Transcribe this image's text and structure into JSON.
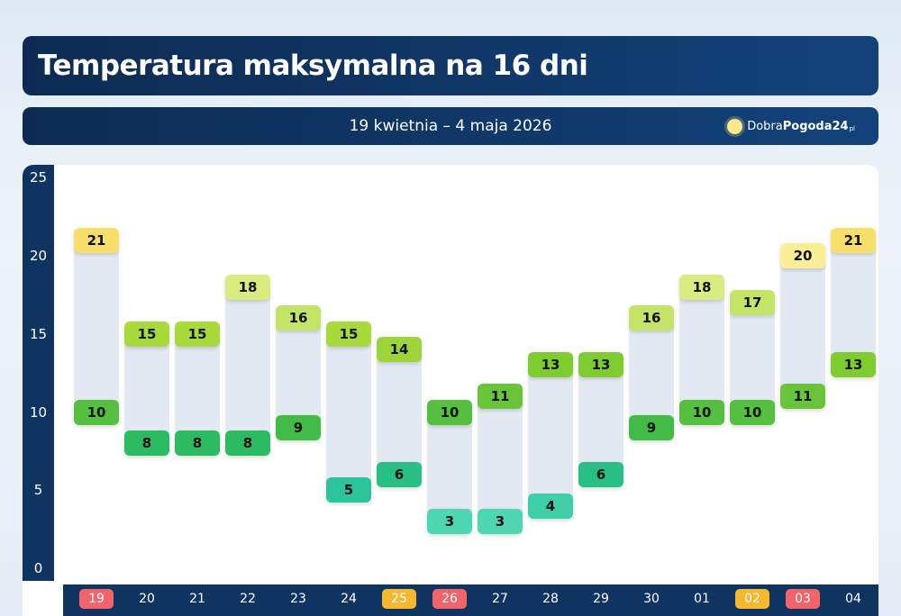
{
  "header": {
    "title": "Temperatura maksymalna na 16 dni",
    "date_range": "19 kwietnia – 4 maja 2026"
  },
  "logo": {
    "part1": "Dobra",
    "part2": "Pogoda24",
    "suffix": "pl",
    "icon": "sun-icon"
  },
  "chart_data": {
    "type": "range-bar",
    "categories": [
      "19",
      "20",
      "21",
      "22",
      "23",
      "24",
      "25",
      "26",
      "27",
      "28",
      "29",
      "30",
      "01",
      "02",
      "03",
      "04"
    ],
    "series": [
      {
        "key": "max",
        "values": [
          21,
          15,
          15,
          18,
          16,
          15,
          14,
          10,
          11,
          13,
          13,
          16,
          18,
          17,
          20,
          21
        ]
      },
      {
        "key": "min",
        "values": [
          10,
          8,
          8,
          8,
          9,
          5,
          6,
          3,
          3,
          4,
          6,
          9,
          10,
          10,
          11,
          13
        ]
      }
    ],
    "yticks": [
      "0",
      "5",
      "10",
      "15",
      "20",
      "25"
    ],
    "ylim": [
      0,
      25
    ],
    "highlighted_days": {
      "26": "#f0646a",
      "19": "#f0646a",
      "03": "#f0646a",
      "25": "#f5b82e",
      "02": "#f5b82e"
    },
    "grid": false
  }
}
